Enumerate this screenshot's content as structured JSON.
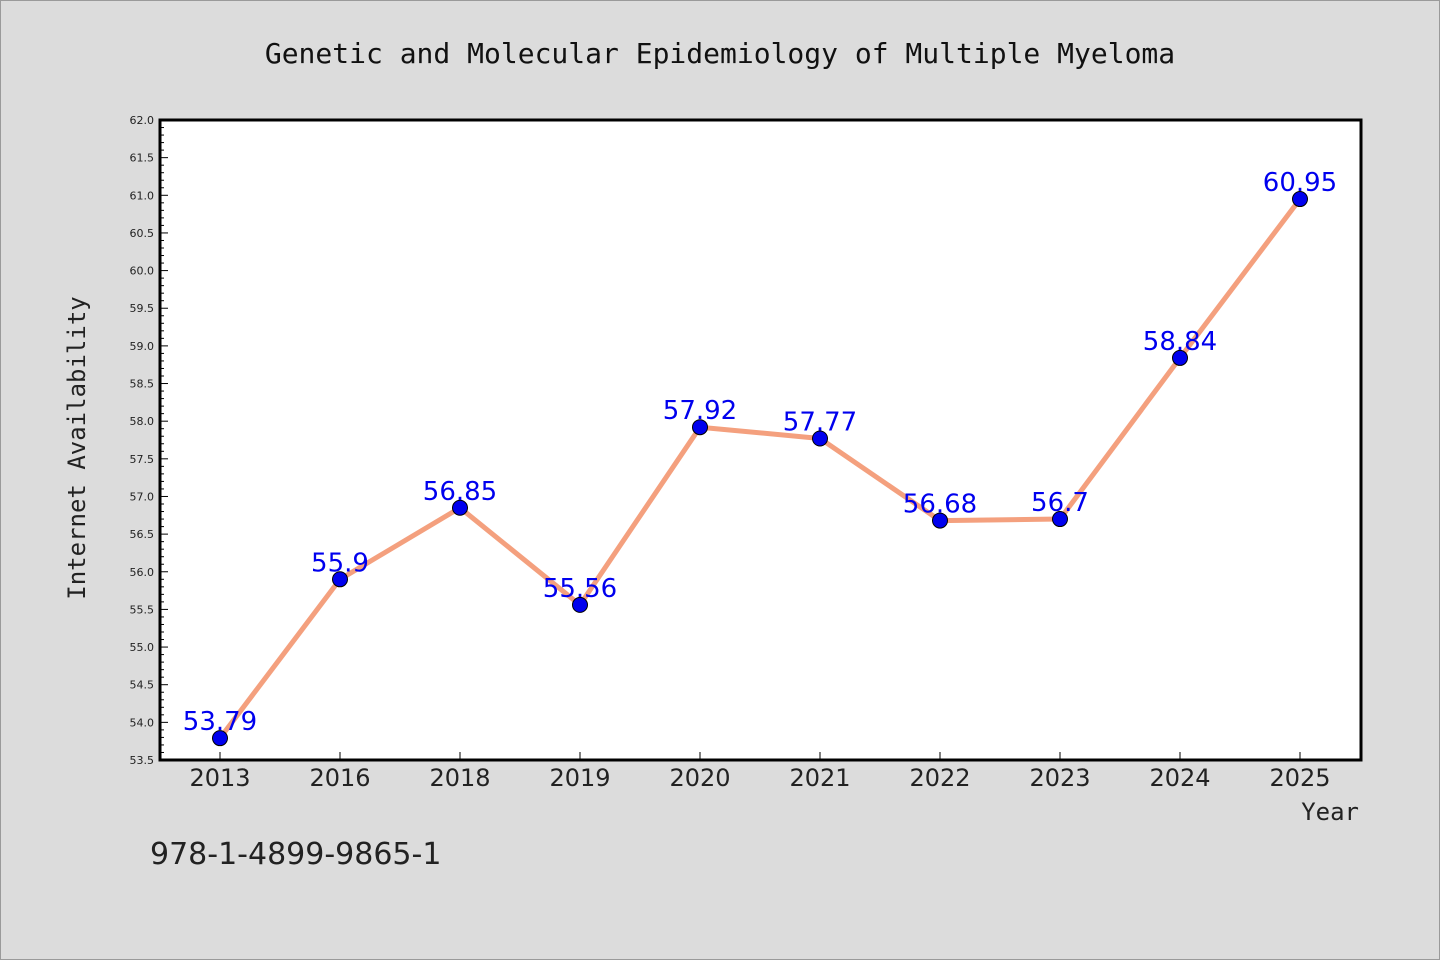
{
  "chart_data": {
    "type": "line",
    "title": "Genetic and Molecular Epidemiology of Multiple Myeloma",
    "xlabel": "Year",
    "ylabel": "Internet Availability",
    "categories": [
      "2013",
      "2016",
      "2018",
      "2019",
      "2020",
      "2021",
      "2022",
      "2023",
      "2024",
      "2025"
    ],
    "values": [
      53.79,
      55.9,
      56.85,
      55.56,
      57.92,
      57.77,
      56.68,
      56.7,
      58.84,
      60.95
    ],
    "data_labels": [
      "53.79",
      "55.9",
      "56.85",
      "55.56",
      "57.92",
      "57.77",
      "56.68",
      "56.7",
      "58.84",
      "60.95"
    ],
    "ylim": [
      53.5,
      62.0
    ],
    "yticks": [
      "53.5",
      "54.0",
      "54.5",
      "55.0",
      "55.5",
      "56.0",
      "56.5",
      "57.0",
      "57.5",
      "58.0",
      "58.5",
      "59.0",
      "59.5",
      "60.0",
      "60.5",
      "61.0",
      "61.5",
      "62.0"
    ],
    "line_color": "#f4a07e",
    "marker_color": "#0000ee",
    "label_color": "#0000ee",
    "grid": false,
    "legend": "none"
  },
  "footer": {
    "isbn": "978-1-4899-9865-1"
  }
}
